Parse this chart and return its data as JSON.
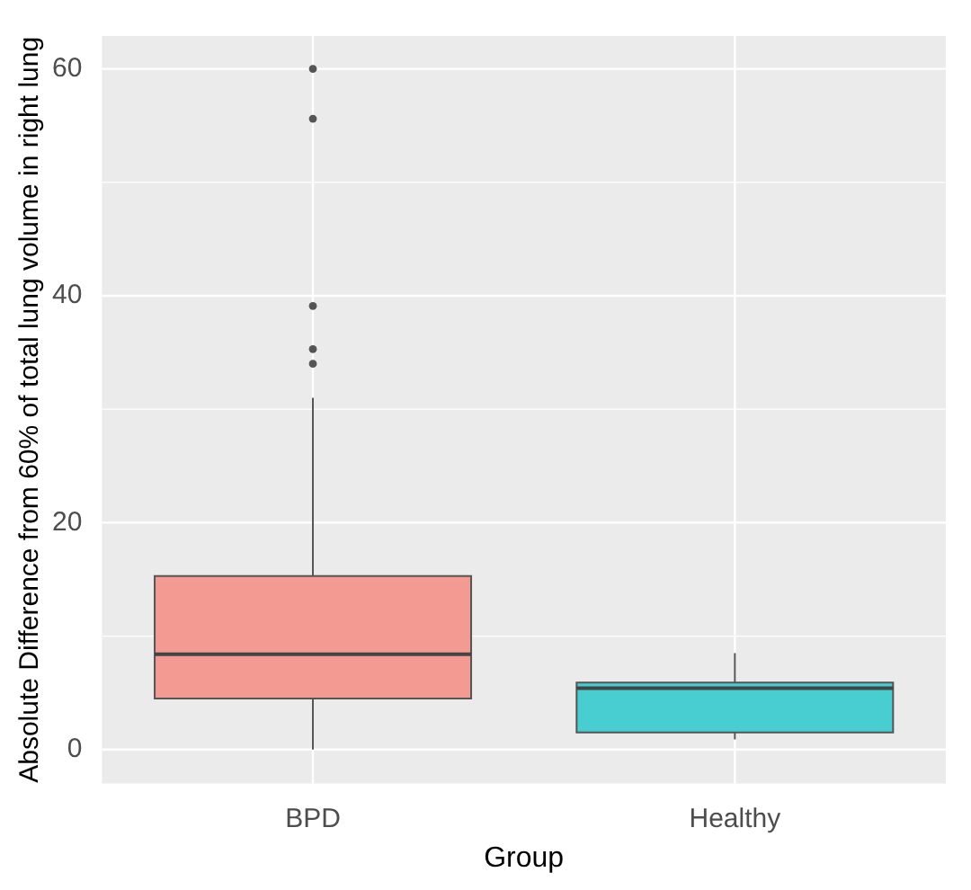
{
  "chart_data": {
    "type": "box",
    "xlabel": "Group",
    "ylabel": "Absolute Difference from 60% of total lung volume in right lung",
    "categories": [
      "BPD",
      "Healthy"
    ],
    "boxes": [
      {
        "low": 0,
        "q1": 4.5,
        "median": 8.4,
        "q3": 15.3,
        "high": 31,
        "outliers": [
          60,
          55.6,
          39.1,
          35.3,
          34
        ]
      },
      {
        "low": 0.9,
        "q1": 1.5,
        "median": 5.4,
        "q3": 5.9,
        "high": 8.5
      }
    ],
    "colors": [
      "#f39a93",
      "#48cdd0"
    ],
    "ylim": [
      -3,
      62.9
    ],
    "yticks": [
      0,
      20,
      40,
      60
    ],
    "grid": true,
    "legend": false
  }
}
